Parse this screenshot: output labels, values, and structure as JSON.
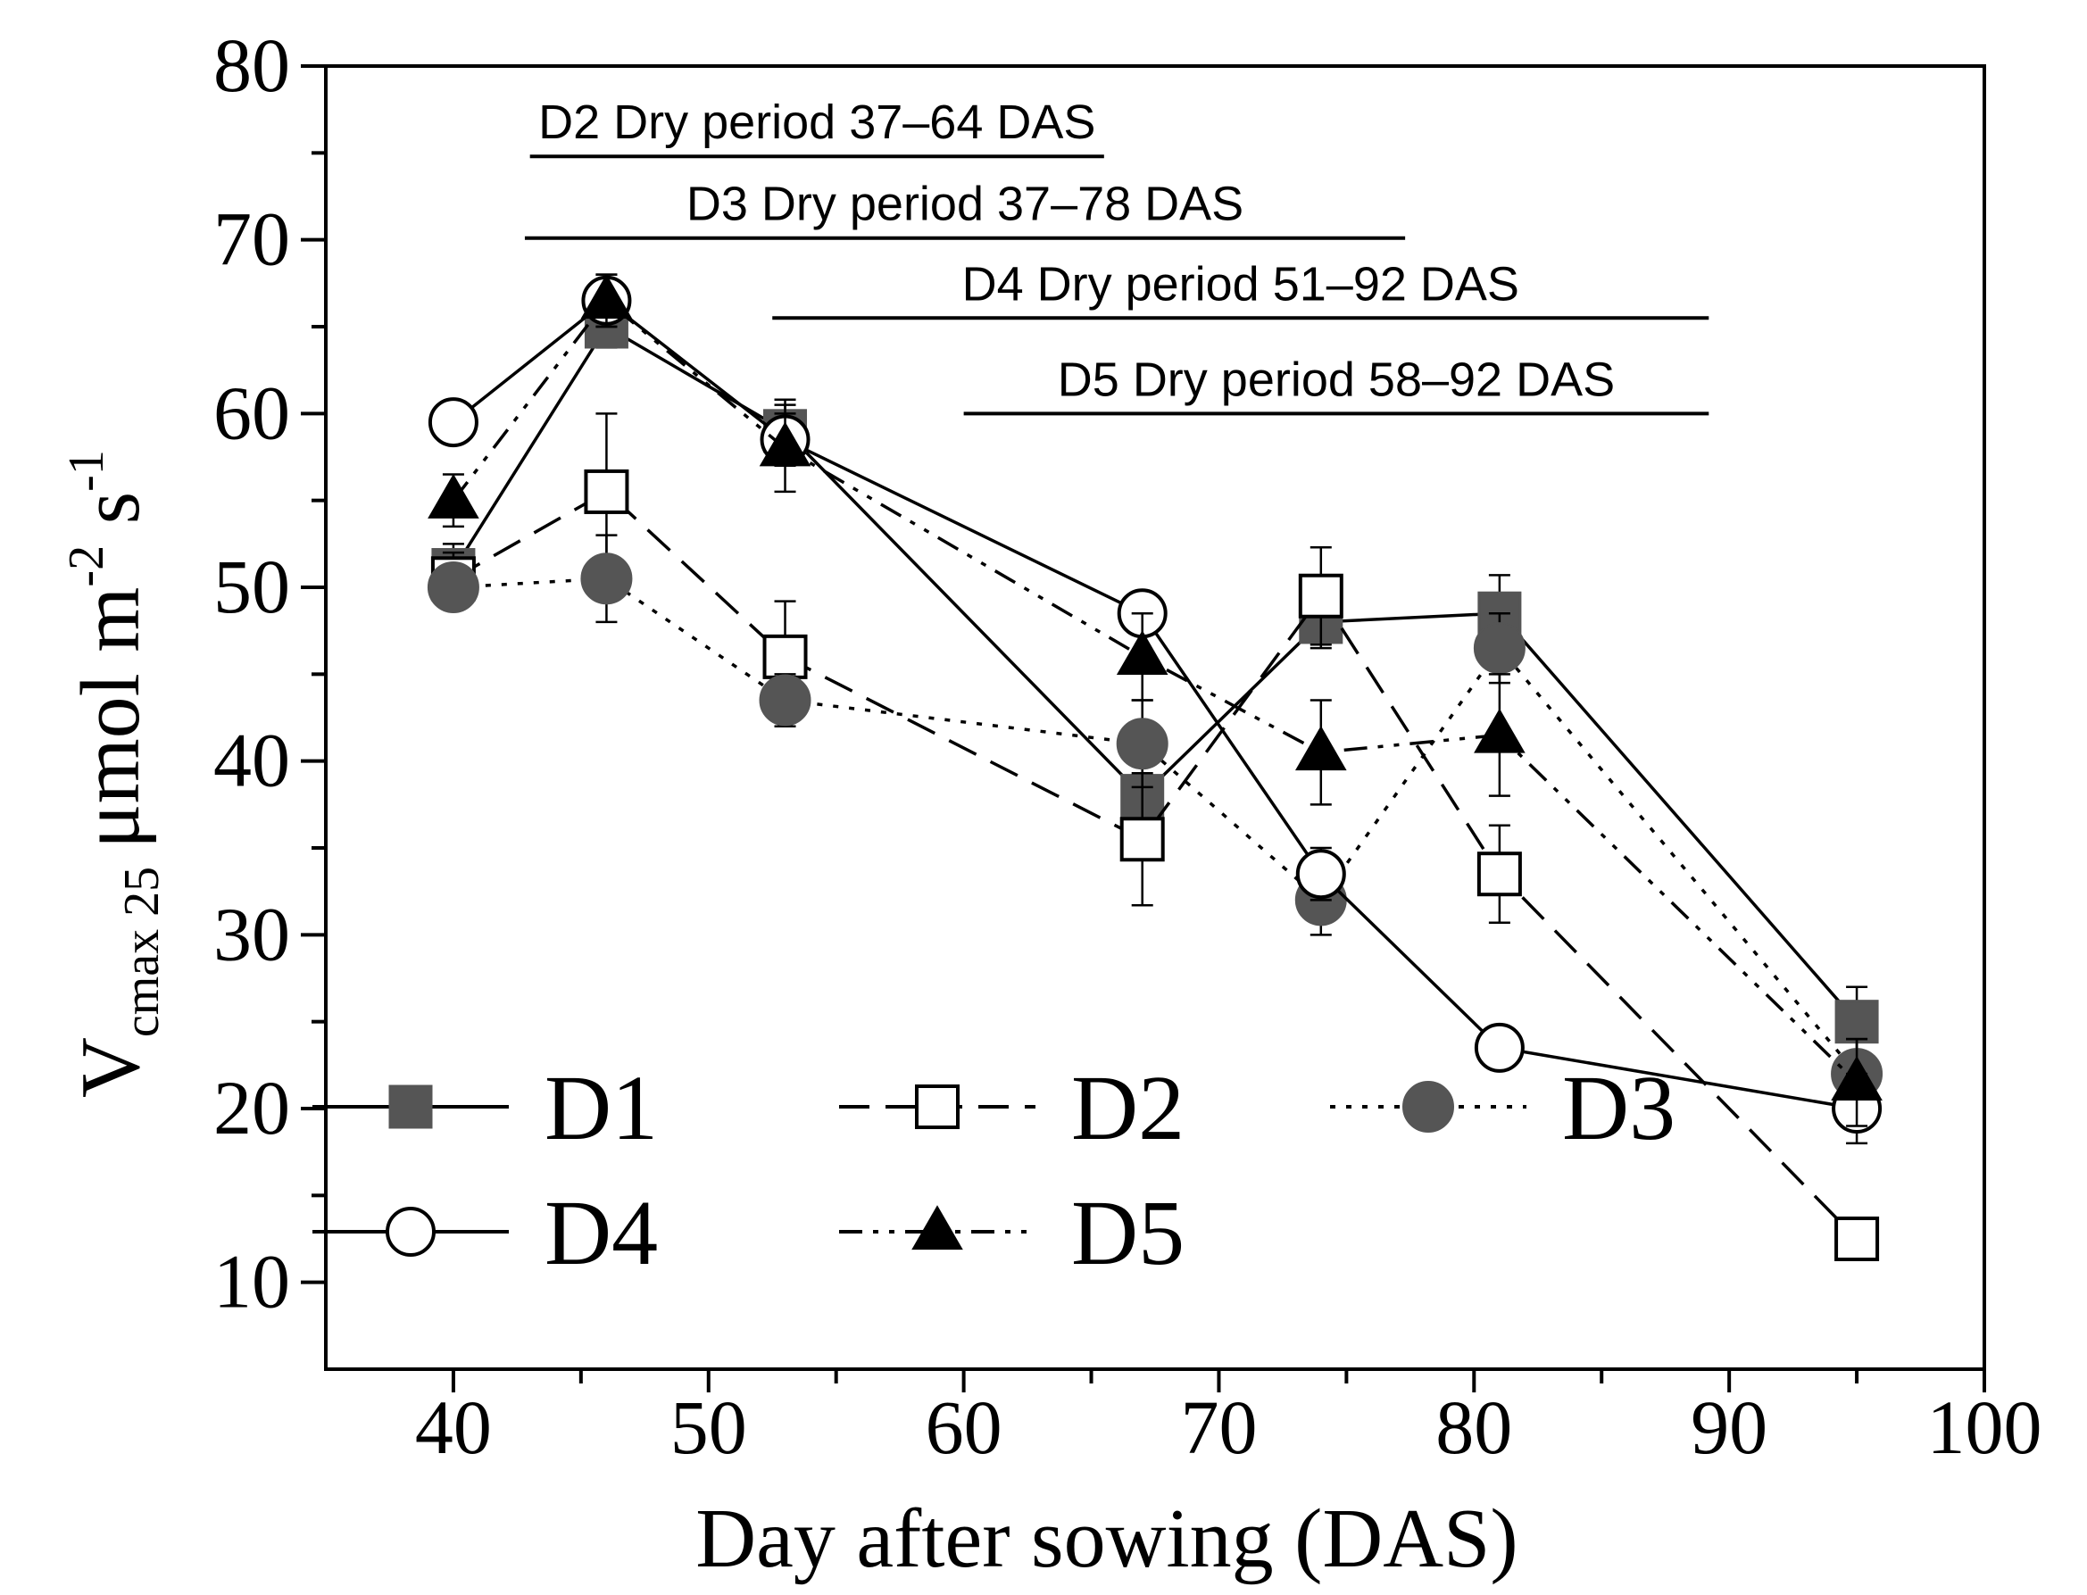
{
  "chart_data": {
    "type": "line",
    "xlabel": "Day after sowing (DAS)",
    "ylabel": {
      "main": "V",
      "sub": "cmax 25",
      "unit": "μmol m",
      "exp1": "-2",
      "s": " s",
      "exp2": "-1"
    },
    "xlim": [
      35,
      100
    ],
    "ylim": [
      5,
      80
    ],
    "xticks": [
      40,
      50,
      60,
      70,
      80,
      90,
      100
    ],
    "yticks": [
      10,
      20,
      30,
      40,
      50,
      60,
      70,
      80
    ],
    "series": [
      {
        "name": "D1",
        "line": "solid",
        "marker": "square-filled",
        "x": [
          40,
          46,
          53,
          67,
          74,
          81,
          95
        ],
        "y": [
          51,
          65,
          59,
          38,
          48,
          48.5,
          25
        ],
        "err": [
          1.5,
          1.2,
          1.8,
          1.8,
          1.5,
          2.2,
          2
        ]
      },
      {
        "name": "D2",
        "line": "dashed",
        "marker": "square-open",
        "x": [
          40,
          46,
          53,
          67,
          74,
          81,
          95
        ],
        "y": [
          50.5,
          55.5,
          46,
          35.5,
          49.5,
          33.5,
          12.5
        ],
        "err": [
          1.5,
          4.5,
          3.2,
          3.8,
          2.8,
          2.8,
          1
        ]
      },
      {
        "name": "D3",
        "line": "dotted",
        "marker": "circle-filled",
        "x": [
          40,
          46,
          53,
          67,
          74,
          81,
          95
        ],
        "y": [
          50,
          50.5,
          43.5,
          41,
          32,
          46.5,
          22
        ],
        "err": [
          1.2,
          2.5,
          1.5,
          2.5,
          2,
          2,
          2
        ]
      },
      {
        "name": "D4",
        "line": "solid",
        "marker": "circle-open",
        "x": [
          40,
          46,
          53,
          67,
          74,
          81,
          95
        ],
        "y": [
          59.5,
          66.5,
          58.5,
          48.5,
          33.5,
          23.5,
          20
        ],
        "err": [
          1.2,
          1.5,
          1.5,
          1,
          1.5,
          1,
          2
        ]
      },
      {
        "name": "D5",
        "line": "dashdotdot",
        "marker": "triangle-filled",
        "x": [
          40,
          46,
          53,
          67,
          74,
          81,
          95
        ],
        "y": [
          55,
          66.5,
          58,
          46,
          40.5,
          41.5,
          21.5
        ],
        "err": [
          1.5,
          1.5,
          2.5,
          2.5,
          3,
          3.5,
          2.5
        ]
      }
    ],
    "annotations": [
      {
        "label": "D2 Dry period 37–64 DAS",
        "x_start": 43,
        "x_end": 65.5,
        "y": 74.8
      },
      {
        "label": "D3 Dry period 37–78 DAS",
        "x_start": 42.8,
        "x_end": 77.3,
        "y": 70.1
      },
      {
        "label": "D4 Dry period 51–92 DAS",
        "x_start": 52.5,
        "x_end": 89.2,
        "y": 65.5
      },
      {
        "label": "D5 Dry period 58–92 DAS",
        "x_start": 60,
        "x_end": 89.2,
        "y": 60.0
      }
    ],
    "legend_position": "bottom-left"
  }
}
